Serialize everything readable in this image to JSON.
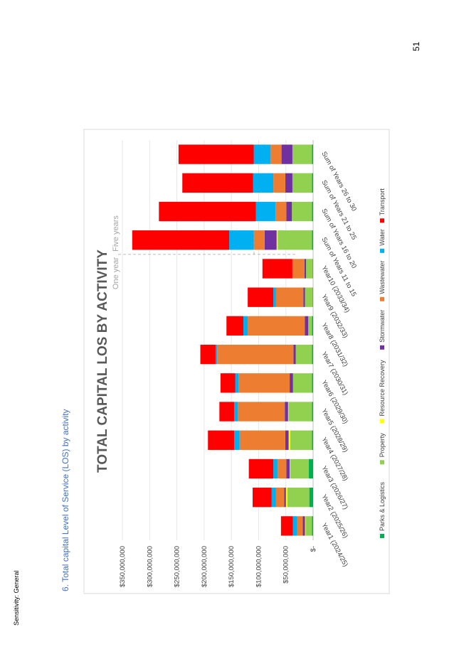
{
  "page": {
    "number": "51",
    "sensitivity": "Sensitivity: General",
    "heading": "6.   Total capital Level of Service (LOS) by activity"
  },
  "chart_data": {
    "type": "bar",
    "stacked": true,
    "orientation": "vertical",
    "title": "TOTAL CAPITAL LOS BY ACTIVITY",
    "ylim": [
      0,
      350000000
    ],
    "yticks": [
      0,
      50000000,
      100000000,
      150000000,
      200000000,
      250000000,
      300000000,
      350000000
    ],
    "ytick_labels": [
      "$-",
      "$50,000,000",
      "$100,000,000",
      "$150,000,000",
      "$200,000,000",
      "$250,000,000",
      "$300,000,000",
      "$350,000,000"
    ],
    "grid": true,
    "legend_position": "bottom",
    "categories": [
      "Year1 (2024/25)",
      "Year2 (2025/26)",
      "Year3 (2026/27)",
      "Year4 (2027/28)",
      "Year5 (2028/29)",
      "Year6 (2029/30)",
      "Year7 (2030/31)",
      "Year8 (2031/32)",
      "Year9 (2032/33)",
      "Year10 (2033/34)",
      "Sum of Years 11 to 15",
      "Sum of Years 16 to 20",
      "Sum of Years 21 to 25",
      "Sum of Years 26 to 30"
    ],
    "series": [
      {
        "name": "Parks & Logistics",
        "color": "#00b050",
        "values": [
          2000000,
          7000000,
          8000000,
          2000000,
          2000000,
          2000000,
          2000000,
          2000000,
          1000000,
          1000000,
          2000000,
          2000000,
          2000000,
          2000000
        ]
      },
      {
        "name": "Property",
        "color": "#92d050",
        "values": [
          12000000,
          40000000,
          34000000,
          40000000,
          43000000,
          35000000,
          30000000,
          7000000,
          14000000,
          12000000,
          63000000,
          37000000,
          36000000,
          36000000
        ]
      },
      {
        "name": "Resource Recovery",
        "color": "#ffff00",
        "values": [
          1000000,
          3000000,
          1000000,
          3000000,
          1000000,
          0,
          0,
          0,
          0,
          0,
          2000000,
          0,
          0,
          0
        ]
      },
      {
        "name": "Stormwater",
        "color": "#7030a0",
        "values": [
          4000000,
          3000000,
          6000000,
          6000000,
          6000000,
          6000000,
          4000000,
          6000000,
          3000000,
          3000000,
          22000000,
          10000000,
          13000000,
          20000000
        ]
      },
      {
        "name": "Wastewater",
        "color": "#ed7d31",
        "values": [
          10000000,
          15000000,
          16000000,
          84000000,
          86000000,
          94000000,
          140000000,
          105000000,
          50000000,
          22000000,
          20000000,
          20000000,
          22000000,
          20000000
        ]
      },
      {
        "name": "Water",
        "color": "#00b0f0",
        "values": [
          8000000,
          8000000,
          8000000,
          10000000,
          7000000,
          6000000,
          3000000,
          8000000,
          5000000,
          0,
          45000000,
          36000000,
          37000000,
          31000000
        ]
      },
      {
        "name": "Transport",
        "color": "#ff0000",
        "values": [
          22000000,
          35000000,
          45000000,
          48000000,
          27000000,
          27000000,
          28000000,
          31000000,
          47000000,
          55000000,
          178000000,
          178000000,
          130000000,
          138000000
        ]
      }
    ],
    "annotations": {
      "one_year": "One year",
      "five_years": "Five years"
    }
  }
}
